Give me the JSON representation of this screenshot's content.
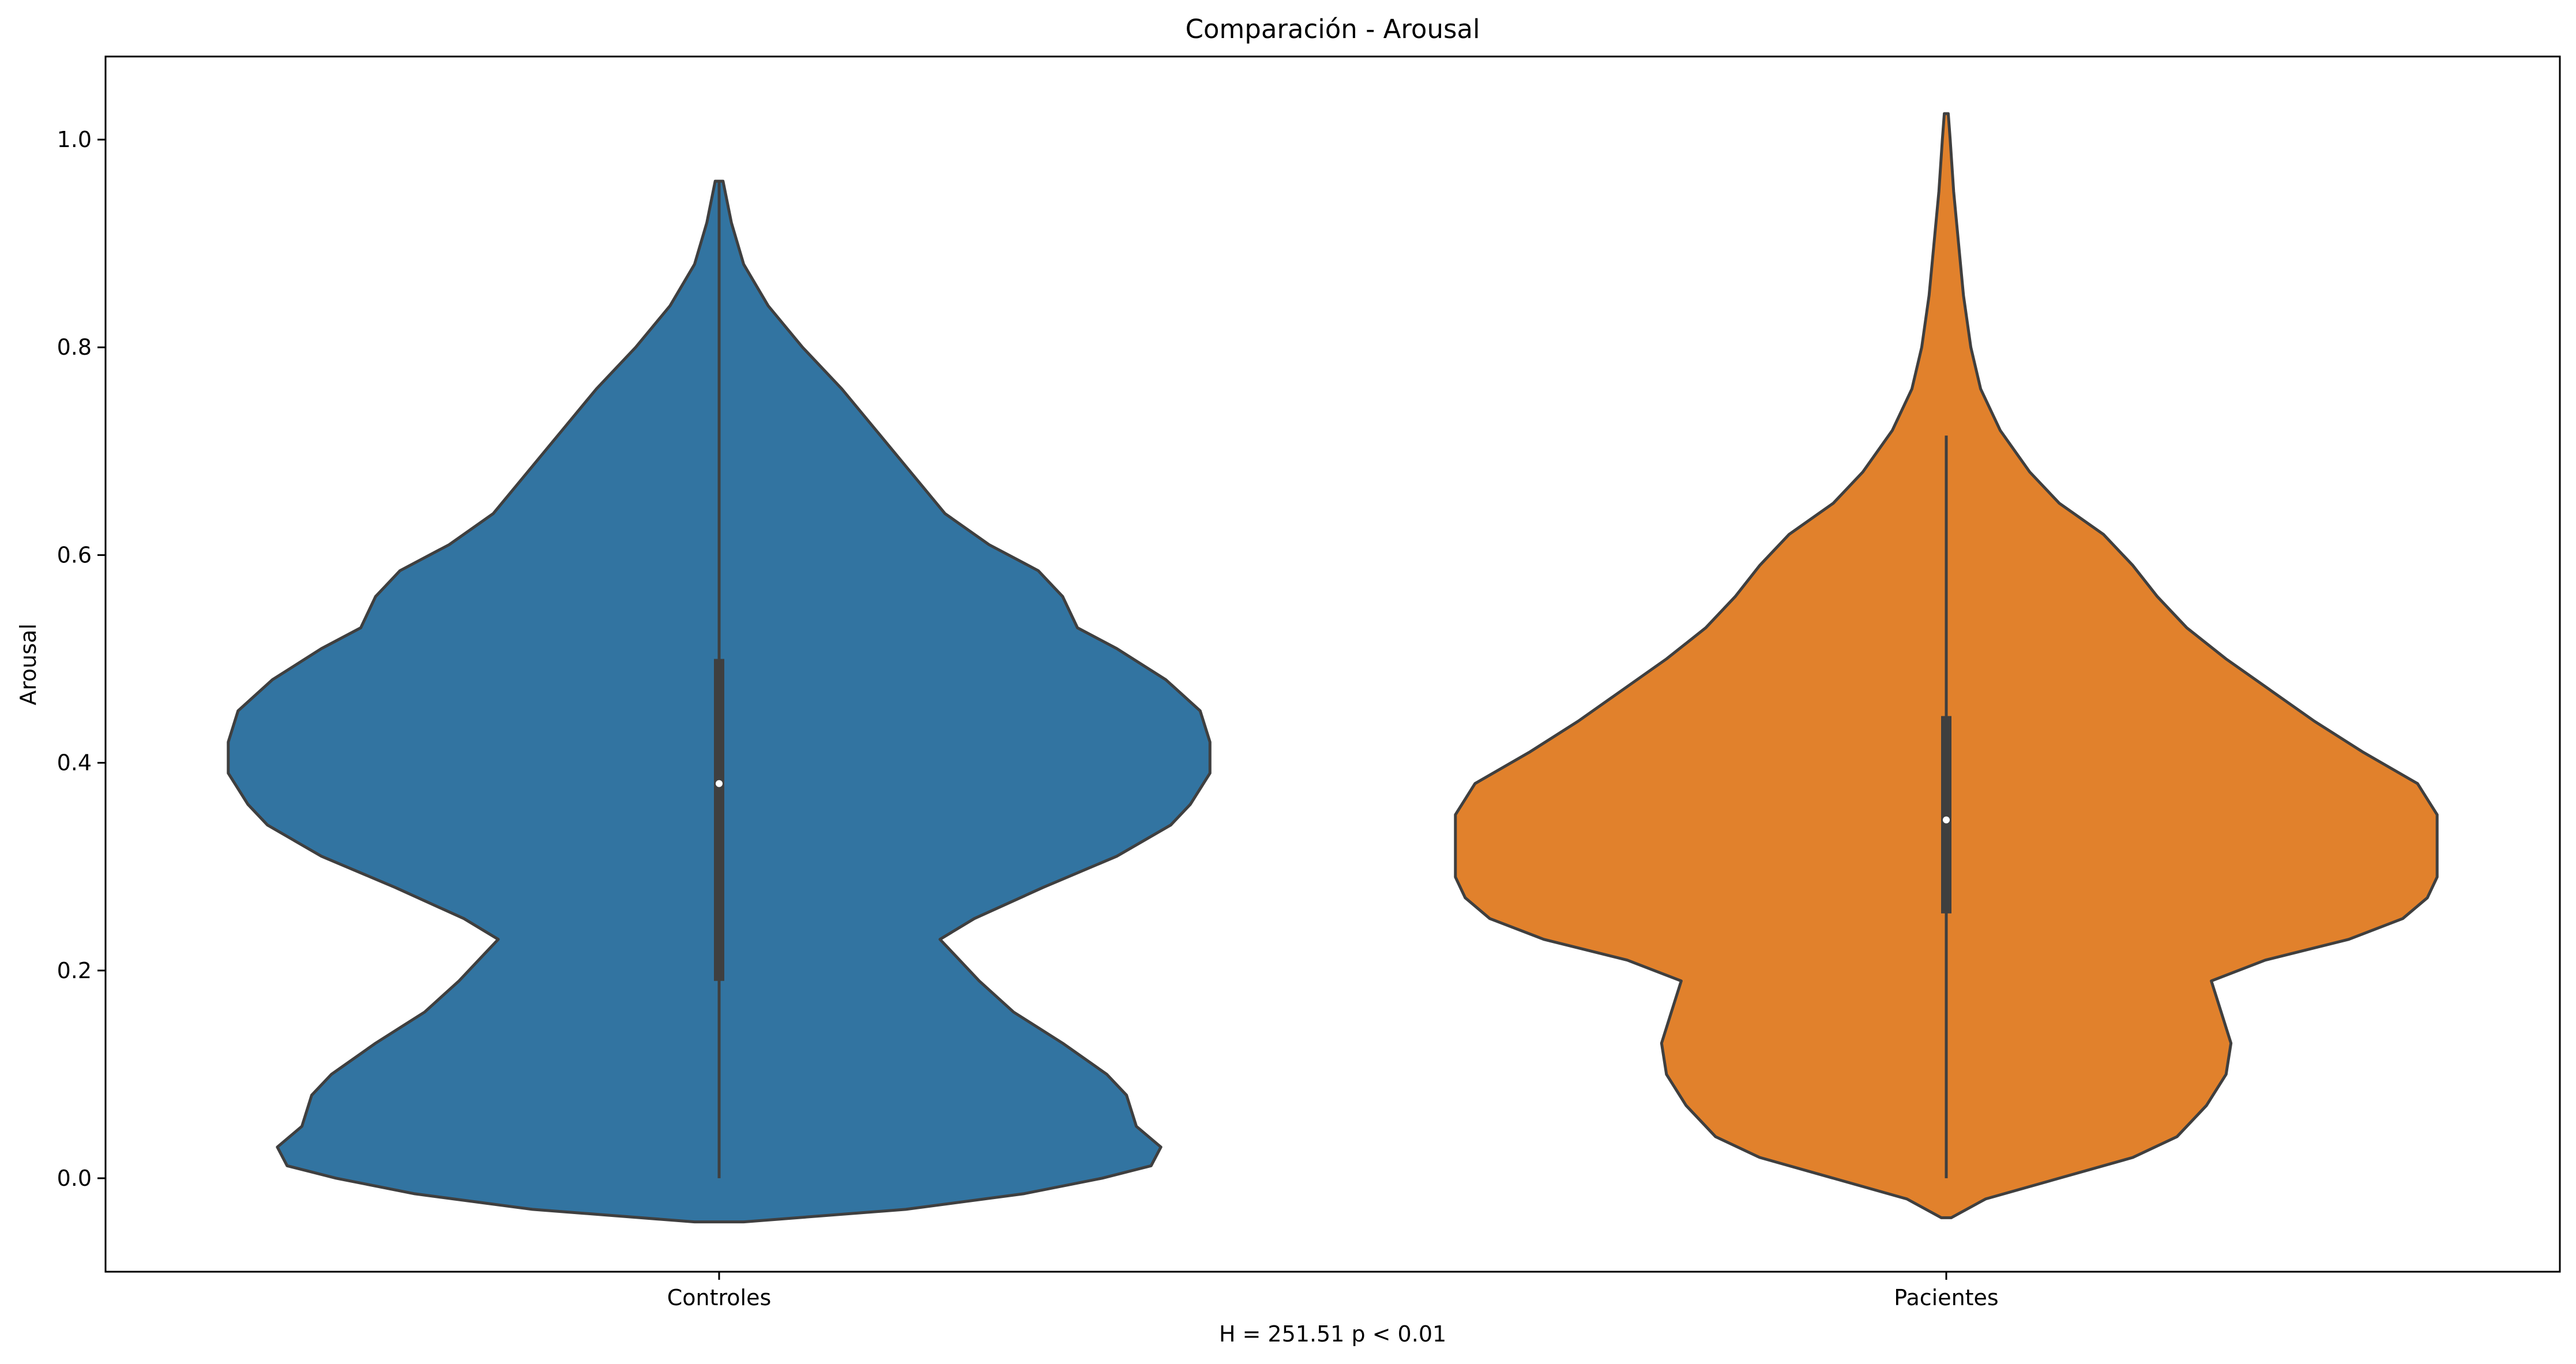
{
  "chart_data": {
    "type": "violin",
    "title": "Comparación - Arousal",
    "xlabel": "H = 251.51 p < 0.01",
    "ylabel": "Arousal",
    "ylim": [
      -0.09,
      1.08
    ],
    "yticks": [
      "0.0",
      "0.2",
      "0.4",
      "0.6",
      "0.8",
      "1.0"
    ],
    "categories": [
      "Controles",
      "Pacientes"
    ],
    "grid": false,
    "series": [
      {
        "color": "#3274a1",
        "min": 0.0,
        "q1": 0.19,
        "median": 0.38,
        "q3": 0.5,
        "max": 0.96,
        "density": [
          [
            -0.042,
            0.05
          ],
          [
            -0.03,
            0.38
          ],
          [
            -0.015,
            0.62
          ],
          [
            0.0,
            0.78
          ],
          [
            0.012,
            0.88
          ],
          [
            0.03,
            0.9
          ],
          [
            0.05,
            0.85
          ],
          [
            0.08,
            0.83
          ],
          [
            0.1,
            0.79
          ],
          [
            0.13,
            0.7
          ],
          [
            0.16,
            0.6
          ],
          [
            0.19,
            0.53
          ],
          [
            0.215,
            0.48
          ],
          [
            0.23,
            0.45
          ],
          [
            0.25,
            0.52
          ],
          [
            0.28,
            0.66
          ],
          [
            0.31,
            0.81
          ],
          [
            0.34,
            0.92
          ],
          [
            0.36,
            0.96
          ],
          [
            0.39,
            1.0
          ],
          [
            0.42,
            1.0
          ],
          [
            0.45,
            0.98
          ],
          [
            0.48,
            0.91
          ],
          [
            0.51,
            0.81
          ],
          [
            0.53,
            0.73
          ],
          [
            0.56,
            0.7
          ],
          [
            0.585,
            0.65
          ],
          [
            0.61,
            0.55
          ],
          [
            0.64,
            0.46
          ],
          [
            0.68,
            0.39
          ],
          [
            0.72,
            0.32
          ],
          [
            0.76,
            0.25
          ],
          [
            0.8,
            0.17
          ],
          [
            0.84,
            0.1
          ],
          [
            0.88,
            0.05
          ],
          [
            0.92,
            0.025
          ],
          [
            0.96,
            0.008
          ]
        ]
      },
      {
        "color": "#e1812c",
        "min": 0.0,
        "q1": 0.255,
        "median": 0.345,
        "q3": 0.445,
        "max": 0.715,
        "density": [
          [
            -0.038,
            0.01
          ],
          [
            -0.02,
            0.08
          ],
          [
            0.0,
            0.23
          ],
          [
            0.02,
            0.38
          ],
          [
            0.04,
            0.47
          ],
          [
            0.07,
            0.53
          ],
          [
            0.1,
            0.57
          ],
          [
            0.13,
            0.58
          ],
          [
            0.16,
            0.56
          ],
          [
            0.19,
            0.54
          ],
          [
            0.21,
            0.65
          ],
          [
            0.23,
            0.82
          ],
          [
            0.25,
            0.93
          ],
          [
            0.27,
            0.98
          ],
          [
            0.29,
            1.0
          ],
          [
            0.32,
            1.0
          ],
          [
            0.35,
            1.0
          ],
          [
            0.38,
            0.96
          ],
          [
            0.41,
            0.85
          ],
          [
            0.44,
            0.75
          ],
          [
            0.47,
            0.66
          ],
          [
            0.5,
            0.57
          ],
          [
            0.53,
            0.49
          ],
          [
            0.56,
            0.43
          ],
          [
            0.59,
            0.38
          ],
          [
            0.62,
            0.32
          ],
          [
            0.65,
            0.23
          ],
          [
            0.68,
            0.17
          ],
          [
            0.72,
            0.11
          ],
          [
            0.76,
            0.07
          ],
          [
            0.8,
            0.05
          ],
          [
            0.85,
            0.035
          ],
          [
            0.9,
            0.025
          ],
          [
            0.95,
            0.015
          ],
          [
            1.0,
            0.008
          ],
          [
            1.025,
            0.004
          ]
        ]
      }
    ]
  }
}
